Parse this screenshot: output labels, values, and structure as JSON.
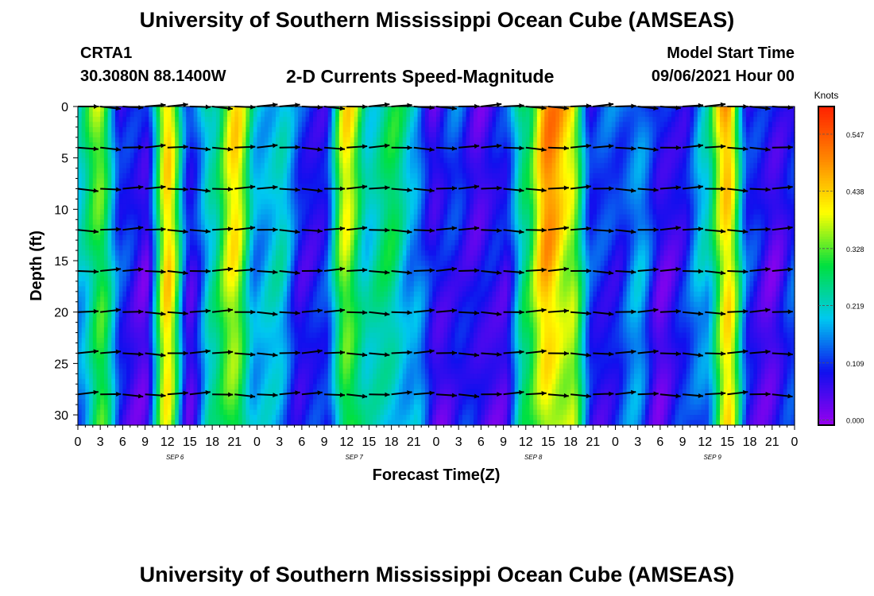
{
  "header": {
    "title": "University of Southern Mississippi Ocean Cube (AMSEAS)",
    "station_id": "CRTA1",
    "coordinates": "30.3080N  88.1400W",
    "model_start_label": "Model Start Time",
    "model_start_value": "09/06/2021 Hour 00"
  },
  "footer": {
    "title": "University of Southern Mississippi Ocean Cube (AMSEAS)"
  },
  "chart_data": {
    "type": "heatmap",
    "title": "2-D Currents Speed-Magnitude",
    "xlabel": "Forecast Time(Z)",
    "ylabel": "Depth (ft)",
    "x_tick_labels": [
      "0",
      "3",
      "6",
      "9",
      "12",
      "15",
      "18",
      "21",
      "0",
      "3",
      "6",
      "9",
      "12",
      "15",
      "18",
      "21",
      "0",
      "3",
      "6",
      "9",
      "12",
      "15",
      "18",
      "21",
      "0",
      "3",
      "6",
      "9",
      "12",
      "15",
      "18",
      "21",
      "0"
    ],
    "date_labels": [
      "SEP 6",
      "SEP 7",
      "SEP 8",
      "SEP 9"
    ],
    "y_ticks": [
      0,
      5,
      10,
      15,
      20,
      25,
      30
    ],
    "ylim": [
      31,
      0
    ],
    "x_range_hours": [
      0,
      96
    ],
    "colorbar": {
      "unit_label": "Knots",
      "tick_labels": [
        "0.547",
        "0.438",
        "0.328",
        "0.219",
        "0.109",
        "0.000"
      ],
      "tick_values": [
        0.547,
        0.438,
        0.328,
        0.219,
        0.109,
        0.0
      ],
      "range": [
        -0.01,
        0.6
      ],
      "colormap": [
        "#9900ee",
        "#1010ee",
        "#00c8f0",
        "#00e040",
        "#ffff00",
        "#ff8800",
        "#ff2000"
      ]
    },
    "speed_profile": {
      "description": "estimated depth-averaged speed (knots) at each 3-hour forecast step, hour 0 to 96",
      "hours": [
        0,
        3,
        6,
        9,
        12,
        15,
        18,
        21,
        24,
        27,
        30,
        33,
        36,
        39,
        42,
        45,
        48,
        51,
        54,
        57,
        60,
        63,
        66,
        69,
        72,
        75,
        78,
        81,
        84,
        87,
        90,
        93,
        96
      ],
      "speed": [
        0.2,
        0.36,
        0.1,
        0.06,
        0.46,
        0.08,
        0.26,
        0.42,
        0.2,
        0.22,
        0.1,
        0.1,
        0.4,
        0.24,
        0.28,
        0.2,
        0.06,
        0.12,
        0.06,
        0.08,
        0.3,
        0.5,
        0.42,
        0.1,
        0.12,
        0.18,
        0.06,
        0.1,
        0.2,
        0.48,
        0.1,
        0.06,
        0.12
      ]
    },
    "vectors": {
      "description": "current direction arrows sampled every 3 hours at these depths (ft)",
      "depths": [
        0,
        4,
        8,
        12,
        16,
        20,
        24,
        28
      ]
    }
  }
}
